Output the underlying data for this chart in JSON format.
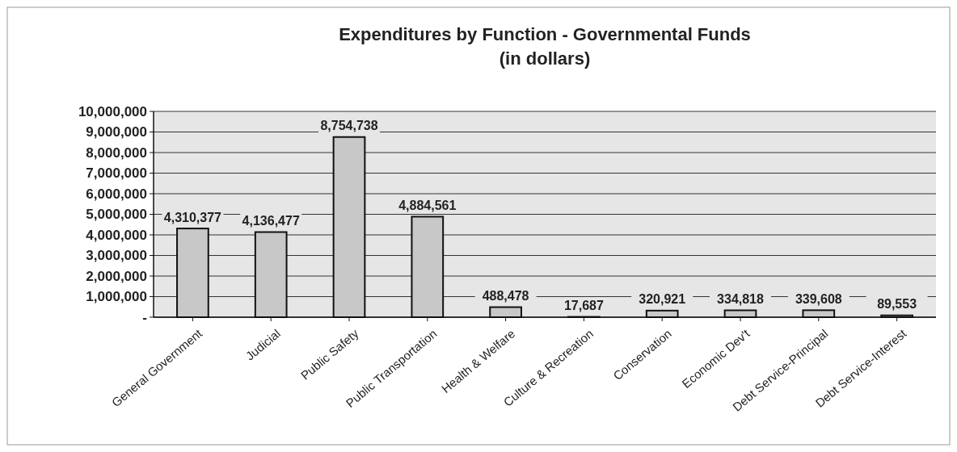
{
  "chart_data": {
    "type": "bar",
    "title": "Expenditures by Function - Governmental Funds\n(in dollars)",
    "categories": [
      "General Government",
      "Judicial",
      "Public Safety",
      "Public Transportation",
      "Health & Welfare",
      "Culture & Recreation",
      "Conservation",
      "Economic Dev't",
      "Debt Service-Principal",
      "Debt Service-Interest"
    ],
    "values": [
      4310377,
      4136477,
      8754738,
      4884561,
      488478,
      17687,
      320921,
      334818,
      339608,
      89553
    ],
    "color": "#c8c8c8",
    "ylim": [
      0,
      10000000
    ],
    "yticks": [
      {
        "value": 0,
        "label": "-"
      },
      {
        "value": 1000000,
        "label": "1,000,000"
      },
      {
        "value": 2000000,
        "label": "2,000,000"
      },
      {
        "value": 3000000,
        "label": "3,000,000"
      },
      {
        "value": 4000000,
        "label": "4,000,000"
      },
      {
        "value": 5000000,
        "label": "5,000,000"
      },
      {
        "value": 6000000,
        "label": "6,000,000"
      },
      {
        "value": 7000000,
        "label": "7,000,000"
      },
      {
        "value": 8000000,
        "label": "8,000,000"
      },
      {
        "value": 9000000,
        "label": "9,000,000"
      },
      {
        "value": 10000000,
        "label": "10,000,000"
      }
    ],
    "value_labels": [
      "4,310,377",
      "4,136,477",
      "8,754,738",
      "4,884,561",
      "488,478",
      "17,687",
      "320,921",
      "334,818",
      "339,608",
      "89,553"
    ],
    "grid": "y"
  }
}
